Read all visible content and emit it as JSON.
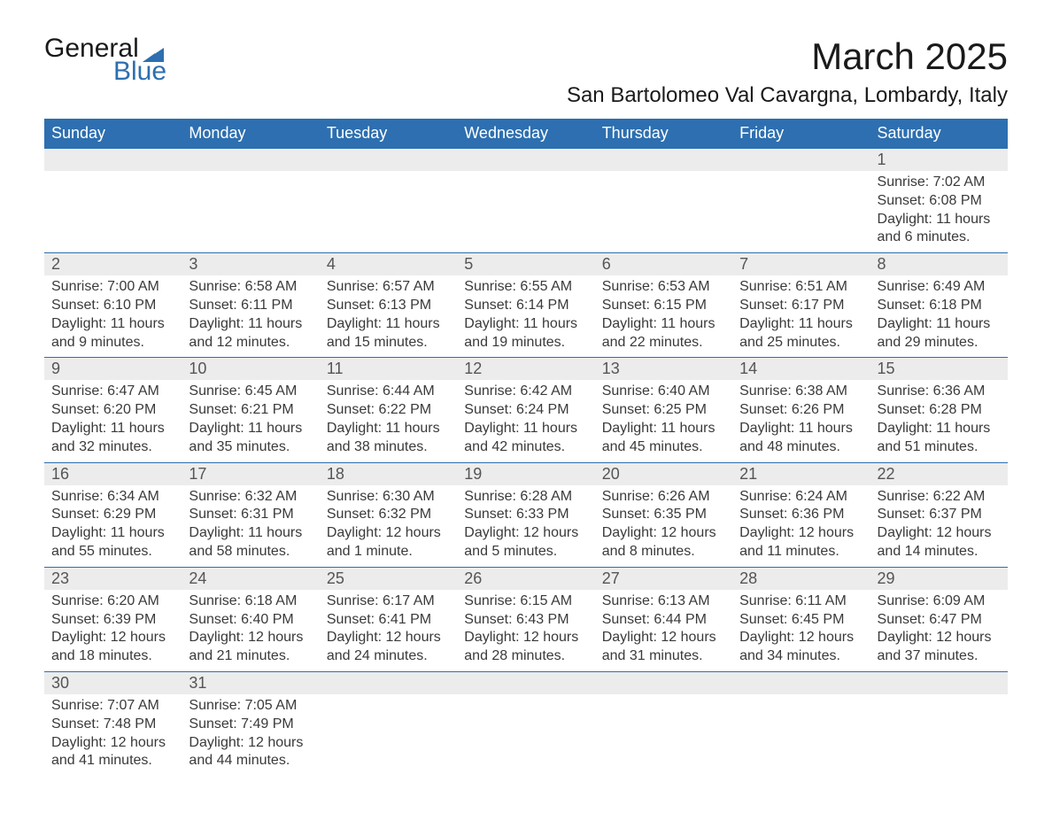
{
  "logo": {
    "text1": "General",
    "text2": "Blue",
    "triangle_color": "#2d6fb0"
  },
  "title": "March 2025",
  "location": "San Bartolomeo Val Cavargna, Lombardy, Italy",
  "colors": {
    "header_bg": "#2d6fb0",
    "header_text": "#ffffff",
    "daynum_bg": "#ececec",
    "body_text": "#3a3a3a",
    "border": "#2d6fb0"
  },
  "day_headers": [
    "Sunday",
    "Monday",
    "Tuesday",
    "Wednesday",
    "Thursday",
    "Friday",
    "Saturday"
  ],
  "weeks": [
    [
      null,
      null,
      null,
      null,
      null,
      null,
      {
        "n": "1",
        "sr": "7:02 AM",
        "ss": "6:08 PM",
        "dl": "11 hours and 6 minutes."
      }
    ],
    [
      {
        "n": "2",
        "sr": "7:00 AM",
        "ss": "6:10 PM",
        "dl": "11 hours and 9 minutes."
      },
      {
        "n": "3",
        "sr": "6:58 AM",
        "ss": "6:11 PM",
        "dl": "11 hours and 12 minutes."
      },
      {
        "n": "4",
        "sr": "6:57 AM",
        "ss": "6:13 PM",
        "dl": "11 hours and 15 minutes."
      },
      {
        "n": "5",
        "sr": "6:55 AM",
        "ss": "6:14 PM",
        "dl": "11 hours and 19 minutes."
      },
      {
        "n": "6",
        "sr": "6:53 AM",
        "ss": "6:15 PM",
        "dl": "11 hours and 22 minutes."
      },
      {
        "n": "7",
        "sr": "6:51 AM",
        "ss": "6:17 PM",
        "dl": "11 hours and 25 minutes."
      },
      {
        "n": "8",
        "sr": "6:49 AM",
        "ss": "6:18 PM",
        "dl": "11 hours and 29 minutes."
      }
    ],
    [
      {
        "n": "9",
        "sr": "6:47 AM",
        "ss": "6:20 PM",
        "dl": "11 hours and 32 minutes."
      },
      {
        "n": "10",
        "sr": "6:45 AM",
        "ss": "6:21 PM",
        "dl": "11 hours and 35 minutes."
      },
      {
        "n": "11",
        "sr": "6:44 AM",
        "ss": "6:22 PM",
        "dl": "11 hours and 38 minutes."
      },
      {
        "n": "12",
        "sr": "6:42 AM",
        "ss": "6:24 PM",
        "dl": "11 hours and 42 minutes."
      },
      {
        "n": "13",
        "sr": "6:40 AM",
        "ss": "6:25 PM",
        "dl": "11 hours and 45 minutes."
      },
      {
        "n": "14",
        "sr": "6:38 AM",
        "ss": "6:26 PM",
        "dl": "11 hours and 48 minutes."
      },
      {
        "n": "15",
        "sr": "6:36 AM",
        "ss": "6:28 PM",
        "dl": "11 hours and 51 minutes."
      }
    ],
    [
      {
        "n": "16",
        "sr": "6:34 AM",
        "ss": "6:29 PM",
        "dl": "11 hours and 55 minutes."
      },
      {
        "n": "17",
        "sr": "6:32 AM",
        "ss": "6:31 PM",
        "dl": "11 hours and 58 minutes."
      },
      {
        "n": "18",
        "sr": "6:30 AM",
        "ss": "6:32 PM",
        "dl": "12 hours and 1 minute."
      },
      {
        "n": "19",
        "sr": "6:28 AM",
        "ss": "6:33 PM",
        "dl": "12 hours and 5 minutes."
      },
      {
        "n": "20",
        "sr": "6:26 AM",
        "ss": "6:35 PM",
        "dl": "12 hours and 8 minutes."
      },
      {
        "n": "21",
        "sr": "6:24 AM",
        "ss": "6:36 PM",
        "dl": "12 hours and 11 minutes."
      },
      {
        "n": "22",
        "sr": "6:22 AM",
        "ss": "6:37 PM",
        "dl": "12 hours and 14 minutes."
      }
    ],
    [
      {
        "n": "23",
        "sr": "6:20 AM",
        "ss": "6:39 PM",
        "dl": "12 hours and 18 minutes."
      },
      {
        "n": "24",
        "sr": "6:18 AM",
        "ss": "6:40 PM",
        "dl": "12 hours and 21 minutes."
      },
      {
        "n": "25",
        "sr": "6:17 AM",
        "ss": "6:41 PM",
        "dl": "12 hours and 24 minutes."
      },
      {
        "n": "26",
        "sr": "6:15 AM",
        "ss": "6:43 PM",
        "dl": "12 hours and 28 minutes."
      },
      {
        "n": "27",
        "sr": "6:13 AM",
        "ss": "6:44 PM",
        "dl": "12 hours and 31 minutes."
      },
      {
        "n": "28",
        "sr": "6:11 AM",
        "ss": "6:45 PM",
        "dl": "12 hours and 34 minutes."
      },
      {
        "n": "29",
        "sr": "6:09 AM",
        "ss": "6:47 PM",
        "dl": "12 hours and 37 minutes."
      }
    ],
    [
      {
        "n": "30",
        "sr": "7:07 AM",
        "ss": "7:48 PM",
        "dl": "12 hours and 41 minutes."
      },
      {
        "n": "31",
        "sr": "7:05 AM",
        "ss": "7:49 PM",
        "dl": "12 hours and 44 minutes."
      },
      null,
      null,
      null,
      null,
      null
    ]
  ],
  "labels": {
    "sunrise": "Sunrise: ",
    "sunset": "Sunset: ",
    "daylight": "Daylight: "
  }
}
